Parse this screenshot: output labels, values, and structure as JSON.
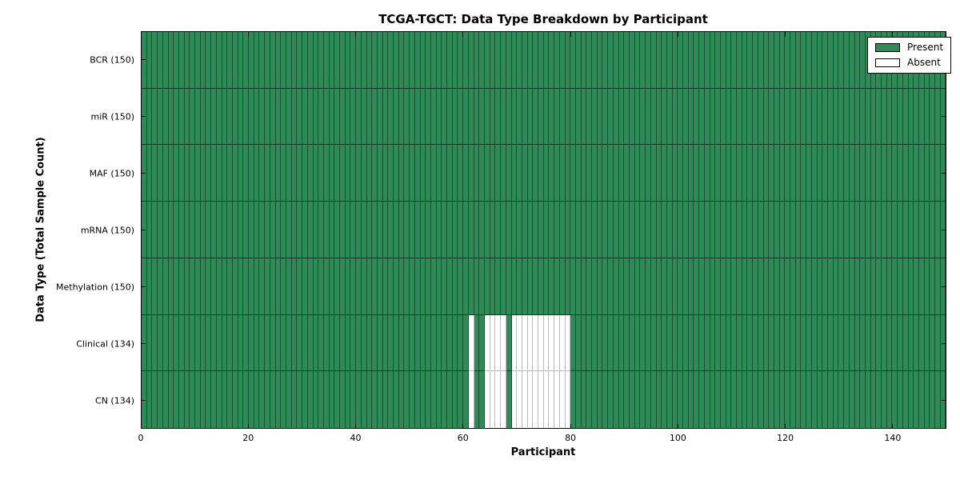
{
  "chart_data": {
    "type": "heatmap",
    "title": "TCGA-TGCT: Data Type Breakdown by Participant",
    "xlabel": "Participant",
    "ylabel": "Data Type (Total Sample Count)",
    "x_range": [
      0,
      150
    ],
    "x_major_ticks": [
      "0",
      "20",
      "40",
      "60",
      "80",
      "100",
      "120",
      "140"
    ],
    "n_participants": 150,
    "rows": [
      {
        "label": "BCR (150)",
        "data_type": "BCR",
        "present_count": 150,
        "absent_participants": []
      },
      {
        "label": "miR (150)",
        "data_type": "miR",
        "present_count": 150,
        "absent_participants": []
      },
      {
        "label": "MAF (150)",
        "data_type": "MAF",
        "present_count": 150,
        "absent_participants": []
      },
      {
        "label": "mRNA (150)",
        "data_type": "mRNA",
        "present_count": 150,
        "absent_participants": []
      },
      {
        "label": "Methylation (150)",
        "data_type": "Methylation",
        "present_count": 150,
        "absent_participants": []
      },
      {
        "label": "Clinical (134)",
        "data_type": "Clinical",
        "present_count": 134,
        "absent_participants": [
          61,
          64,
          65,
          66,
          67,
          69,
          70,
          71,
          72,
          73,
          74,
          75,
          76,
          77,
          78,
          79
        ]
      },
      {
        "label": "CN (134)",
        "data_type": "CN",
        "present_count": 134,
        "absent_participants": [
          61,
          64,
          65,
          66,
          67,
          69,
          70,
          71,
          72,
          73,
          74,
          75,
          76,
          77,
          78,
          79
        ]
      }
    ],
    "legend": [
      {
        "label": "Present",
        "color": "#2e8b57"
      },
      {
        "label": "Absent",
        "color": "#ffffff"
      }
    ],
    "legend_position": "upper right",
    "grid": true,
    "colors": {
      "present": "#2e8b57",
      "absent": "#ffffff",
      "spine": "#000000",
      "grid_on_present": "rgba(0,0,0,0.42)",
      "grid_on_absent": "#bdbdbd"
    }
  }
}
